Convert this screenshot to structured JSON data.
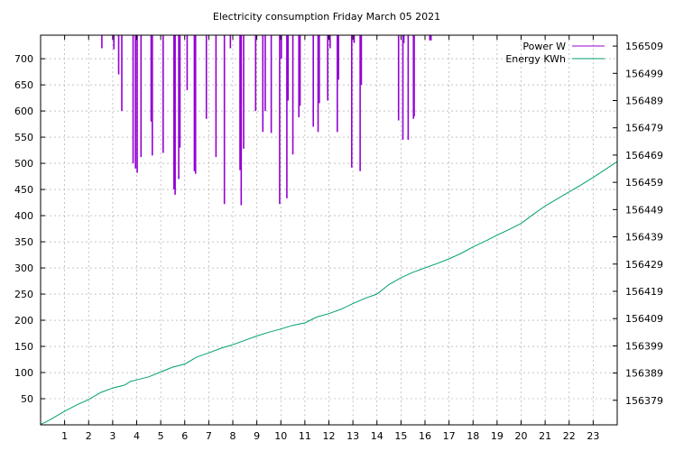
{
  "chart_data": {
    "type": "line",
    "title": "Electricity consumption Friday March 05 2021",
    "xlabel": "",
    "ylabel": "",
    "y2label": "",
    "grid": true,
    "legend_position": "top-right",
    "xlim": [
      0,
      24
    ],
    "ylim": [
      0,
      745
    ],
    "y2lim": [
      156370,
      156513
    ],
    "x_ticks": [
      1,
      2,
      3,
      4,
      5,
      6,
      7,
      8,
      9,
      10,
      11,
      12,
      13,
      14,
      15,
      16,
      17,
      18,
      19,
      20,
      21,
      22,
      23
    ],
    "y_ticks": [
      50,
      100,
      150,
      200,
      250,
      300,
      350,
      400,
      450,
      500,
      550,
      600,
      650,
      700
    ],
    "y2_ticks": [
      156379,
      156389,
      156399,
      156409,
      156419,
      156429,
      156439,
      156449,
      156459,
      156469,
      156479,
      156489,
      156499,
      156509
    ],
    "series": [
      {
        "name": "Power W",
        "axis": "y",
        "style": "impulse-top",
        "color": "#9400d3",
        "spikes": [
          {
            "x": 2.55,
            "low": 720
          },
          {
            "x": 3.05,
            "low": 718
          },
          {
            "x": 3.25,
            "low": 670
          },
          {
            "x": 3.38,
            "low": 600
          },
          {
            "x": 3.85,
            "low": 500
          },
          {
            "x": 3.95,
            "low": 490
          },
          {
            "x": 4.02,
            "low": 482
          },
          {
            "x": 4.18,
            "low": 512
          },
          {
            "x": 4.6,
            "low": 580
          },
          {
            "x": 4.65,
            "low": 515
          },
          {
            "x": 5.1,
            "low": 520
          },
          {
            "x": 5.55,
            "low": 450
          },
          {
            "x": 5.6,
            "low": 440
          },
          {
            "x": 5.75,
            "low": 470
          },
          {
            "x": 5.8,
            "low": 530
          },
          {
            "x": 6.1,
            "low": 640
          },
          {
            "x": 6.4,
            "low": 485
          },
          {
            "x": 6.45,
            "low": 480
          },
          {
            "x": 6.9,
            "low": 585
          },
          {
            "x": 7.3,
            "low": 512
          },
          {
            "x": 7.65,
            "low": 422
          },
          {
            "x": 7.9,
            "low": 720
          },
          {
            "x": 8.3,
            "low": 487
          },
          {
            "x": 8.35,
            "low": 420
          },
          {
            "x": 8.45,
            "low": 528
          },
          {
            "x": 8.95,
            "low": 600
          },
          {
            "x": 9.25,
            "low": 560
          },
          {
            "x": 9.35,
            "low": 600
          },
          {
            "x": 9.6,
            "low": 558
          },
          {
            "x": 9.95,
            "low": 422
          },
          {
            "x": 10.02,
            "low": 700
          },
          {
            "x": 10.25,
            "low": 433
          },
          {
            "x": 10.3,
            "low": 620
          },
          {
            "x": 10.5,
            "low": 517
          },
          {
            "x": 10.75,
            "low": 588
          },
          {
            "x": 10.8,
            "low": 610
          },
          {
            "x": 11.35,
            "low": 570
          },
          {
            "x": 11.55,
            "low": 560
          },
          {
            "x": 11.6,
            "low": 615
          },
          {
            "x": 11.95,
            "low": 620
          },
          {
            "x": 12.05,
            "low": 720
          },
          {
            "x": 12.35,
            "low": 560
          },
          {
            "x": 12.4,
            "low": 660
          },
          {
            "x": 12.95,
            "low": 492
          },
          {
            "x": 13.05,
            "low": 730
          },
          {
            "x": 13.3,
            "low": 485
          },
          {
            "x": 13.35,
            "low": 650
          },
          {
            "x": 14.9,
            "low": 582
          },
          {
            "x": 15.08,
            "low": 545
          },
          {
            "x": 15.12,
            "low": 730
          },
          {
            "x": 15.3,
            "low": 545
          },
          {
            "x": 15.52,
            "low": 585
          },
          {
            "x": 15.55,
            "low": 590
          },
          {
            "x": 16.2,
            "low": 735
          },
          {
            "x": 16.25,
            "low": 735
          }
        ]
      },
      {
        "name": "Energy KWh",
        "axis": "y2",
        "color": "#009e73",
        "x": [
          0,
          0.25,
          0.5,
          1,
          1.5,
          2,
          2.5,
          3,
          3.5,
          3.75,
          4,
          4.5,
          5,
          5.5,
          6,
          6.5,
          7,
          7.5,
          8,
          8.5,
          9,
          9.5,
          10,
          10.5,
          11,
          11.5,
          12,
          12.5,
          13,
          13.5,
          14,
          14.5,
          15,
          15.5,
          16,
          16.5,
          17,
          17.5,
          18,
          18.5,
          19,
          19.5,
          20,
          20.5,
          21,
          21.5,
          22,
          22.5,
          23,
          23.5,
          24
        ],
        "y": [
          156370.2,
          156371.2,
          156372.4,
          156375.0,
          156377.3,
          156379.3,
          156381.9,
          156383.5,
          156384.6,
          156386.0,
          156386.5,
          156387.6,
          156389.4,
          156391.2,
          156392.3,
          156394.9,
          156396.4,
          156398.1,
          156399.4,
          156401.0,
          156402.6,
          156404.0,
          156405.2,
          156406.5,
          156407.4,
          156409.6,
          156410.8,
          156412.4,
          156414.5,
          156416.4,
          156418.0,
          156421.5,
          156424.0,
          156426.0,
          156427.6,
          156429.2,
          156430.9,
          156432.9,
          156435.3,
          156437.4,
          156439.6,
          156441.7,
          156443.9,
          156447.2,
          156450.3,
          156452.9,
          156455.5,
          156458.1,
          156460.8,
          156463.7,
          156466.6
        ]
      }
    ]
  }
}
